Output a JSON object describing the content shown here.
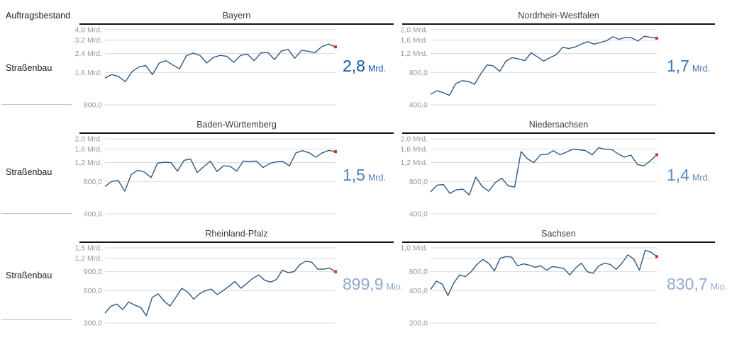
{
  "page": {
    "corner_label": "Auftragsbestand",
    "row_labels": [
      "Straßenbau",
      "Straßenbau",
      "Straßenbau"
    ]
  },
  "colors": {
    "line": "#2d5a87",
    "grid": "#dadada",
    "tick_label": "#979797",
    "title": "#3c3c3c",
    "title_rule": "#141414",
    "end_marker": "#e02b20",
    "separator": "#c6c6c6",
    "value_strong": "#0f57a7",
    "value_muted": "#92a9d0"
  },
  "chart_data": [
    {
      "type": "line",
      "title": "Bayern",
      "y_scale": "log",
      "y_min": 0.8,
      "y_max": 4.0,
      "y_ticks": [
        {
          "value": 4.0,
          "label": "4,0 Mrd."
        },
        {
          "value": 3.2,
          "label": "3,2 Mrd."
        },
        {
          "value": 2.4,
          "label": "2,4 Mrd."
        },
        {
          "value": 1.6,
          "label": "1,6 Mrd."
        },
        {
          "value": 0.8,
          "label": "800,0"
        }
      ],
      "values": [
        1.42,
        1.53,
        1.47,
        1.31,
        1.63,
        1.8,
        1.86,
        1.53,
        1.96,
        2.06,
        1.88,
        1.73,
        2.29,
        2.42,
        2.31,
        1.96,
        2.21,
        2.31,
        2.26,
        1.99,
        2.31,
        2.37,
        2.06,
        2.43,
        2.47,
        2.11,
        2.53,
        2.63,
        2.17,
        2.57,
        2.52,
        2.45,
        2.8,
        2.94,
        2.77
      ],
      "current": {
        "label": "2,8",
        "suffix": "Mrd."
      },
      "value_color": "#0f57a7"
    },
    {
      "type": "line",
      "title": "Nordrhein-Westfalen",
      "y_scale": "log",
      "y_min": 0.4,
      "y_max": 2.0,
      "y_ticks": [
        {
          "value": 2.0,
          "label": "2,0 Mrd."
        },
        {
          "value": 1.6,
          "label": "1,6 Mrd."
        },
        {
          "value": 1.2,
          "label": "1,2 Mrd."
        },
        {
          "value": 0.8,
          "label": "800,0"
        },
        {
          "value": 0.4,
          "label": "400,0"
        }
      ],
      "values": [
        0.5,
        0.54,
        0.52,
        0.49,
        0.63,
        0.67,
        0.66,
        0.62,
        0.78,
        0.94,
        0.92,
        0.82,
        1.02,
        1.1,
        1.07,
        1.03,
        1.22,
        1.12,
        1.02,
        1.1,
        1.17,
        1.37,
        1.34,
        1.38,
        1.47,
        1.55,
        1.47,
        1.52,
        1.58,
        1.72,
        1.63,
        1.7,
        1.68,
        1.57,
        1.74,
        1.7,
        1.67
      ],
      "current": {
        "label": "1,7",
        "suffix": "Mrd."
      },
      "value_color": "#3c76b5"
    },
    {
      "type": "line",
      "title": "Baden-Württemberg",
      "y_scale": "log",
      "y_min": 0.4,
      "y_max": 2.0,
      "y_ticks": [
        {
          "value": 2.0,
          "label": "2,0 Mrd."
        },
        {
          "value": 1.6,
          "label": "1,6 Mrd."
        },
        {
          "value": 1.2,
          "label": "1,2 Mrd."
        },
        {
          "value": 0.8,
          "label": "800,0"
        },
        {
          "value": 0.4,
          "label": "400,0"
        }
      ],
      "values": [
        0.72,
        0.8,
        0.82,
        0.65,
        0.93,
        1.02,
        0.98,
        0.87,
        1.19,
        1.21,
        1.2,
        1.0,
        1.26,
        1.3,
        0.97,
        1.1,
        1.24,
        0.99,
        1.12,
        1.11,
        1.0,
        1.24,
        1.23,
        1.24,
        1.08,
        1.18,
        1.22,
        1.23,
        1.12,
        1.48,
        1.55,
        1.48,
        1.35,
        1.48,
        1.56,
        1.52
      ],
      "current": {
        "label": "1,5",
        "suffix": "Mrd."
      },
      "value_color": "#4c7fbc"
    },
    {
      "type": "line",
      "title": "Niedersachsen",
      "y_scale": "log",
      "y_min": 0.4,
      "y_max": 2.0,
      "y_ticks": [
        {
          "value": 2.0,
          "label": "2,0 Mrd."
        },
        {
          "value": 1.6,
          "label": "1,6 Mrd."
        },
        {
          "value": 1.2,
          "label": "1,2 Mrd."
        },
        {
          "value": 0.8,
          "label": "800,0"
        },
        {
          "value": 0.4,
          "label": "400,0"
        }
      ],
      "values": [
        0.64,
        0.74,
        0.75,
        0.62,
        0.67,
        0.68,
        0.6,
        0.88,
        0.72,
        0.65,
        0.78,
        0.86,
        0.73,
        0.71,
        1.52,
        1.3,
        1.2,
        1.42,
        1.43,
        1.55,
        1.42,
        1.5,
        1.6,
        1.58,
        1.55,
        1.42,
        1.65,
        1.6,
        1.59,
        1.45,
        1.35,
        1.41,
        1.15,
        1.12,
        1.25,
        1.42
      ],
      "current": {
        "label": "1,4",
        "suffix": "Mrd."
      },
      "value_color": "#5e8ac1"
    },
    {
      "type": "line",
      "title": "Rheinland-Pfalz",
      "y_scale": "log",
      "y_min": 0.3,
      "y_max": 1.5,
      "y_ticks": [
        {
          "value": 1.5,
          "label": "1,5 Mrd."
        },
        {
          "value": 1.2,
          "label": "1,2 Mrd."
        },
        {
          "value": 0.9,
          "label": "900,0"
        },
        {
          "value": 0.6,
          "label": "600,0"
        },
        {
          "value": 0.3,
          "label": "300,0"
        }
      ],
      "values": [
        0.37,
        0.43,
        0.45,
        0.4,
        0.47,
        0.44,
        0.42,
        0.35,
        0.52,
        0.56,
        0.48,
        0.43,
        0.52,
        0.63,
        0.58,
        0.5,
        0.56,
        0.6,
        0.62,
        0.55,
        0.6,
        0.66,
        0.73,
        0.63,
        0.7,
        0.78,
        0.84,
        0.75,
        0.72,
        0.76,
        0.93,
        0.88,
        0.9,
        1.05,
        1.13,
        1.1,
        0.95,
        0.95,
        0.97,
        0.9
      ],
      "current": {
        "label": "899,9",
        "suffix": "Mio."
      },
      "value_color": "#8ea6ce"
    },
    {
      "type": "line",
      "title": "Sachsen",
      "y_scale": "log",
      "y_min": 0.2,
      "y_max": 1.0,
      "y_ticks": [
        {
          "value": 1.0,
          "label": "1,0 Mrd."
        },
        {
          "value": 0.8,
          "label": ""
        },
        {
          "value": 0.6,
          "label": "600,0"
        },
        {
          "value": 0.4,
          "label": "400,0"
        },
        {
          "value": 0.2,
          "label": "200,0"
        }
      ],
      "values": [
        0.41,
        0.49,
        0.46,
        0.36,
        0.47,
        0.56,
        0.54,
        0.6,
        0.7,
        0.78,
        0.72,
        0.61,
        0.8,
        0.83,
        0.82,
        0.68,
        0.71,
        0.69,
        0.66,
        0.68,
        0.62,
        0.67,
        0.66,
        0.64,
        0.56,
        0.65,
        0.72,
        0.6,
        0.58,
        0.68,
        0.72,
        0.7,
        0.63,
        0.72,
        0.86,
        0.79,
        0.62,
        0.95,
        0.91,
        0.83
      ],
      "current": {
        "label": "830,7",
        "suffix": "Mio."
      },
      "value_color": "#93abd1"
    }
  ]
}
